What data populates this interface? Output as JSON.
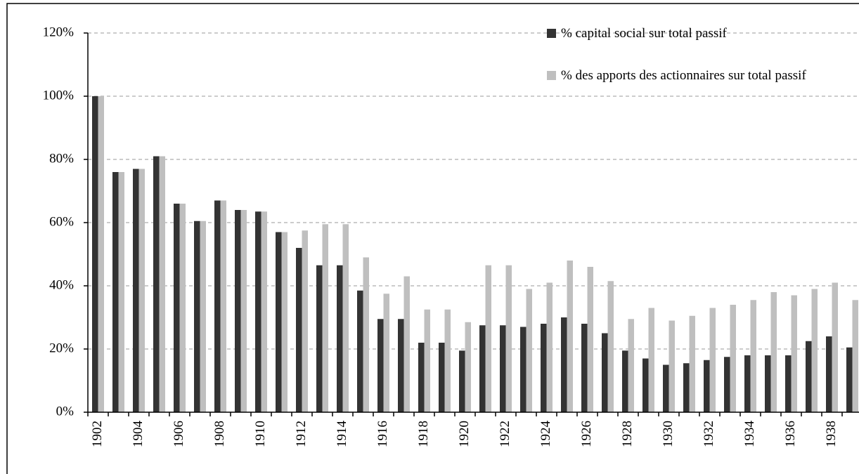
{
  "chart_data": {
    "type": "bar",
    "categories": [
      "1902",
      null,
      "1904",
      null,
      "1906",
      null,
      "1908",
      null,
      "1910",
      null,
      "1912",
      null,
      "1914",
      null,
      "1916",
      null,
      "1918",
      null,
      "1920",
      null,
      "1922",
      null,
      "1924",
      null,
      "1926",
      null,
      "1928",
      null,
      "1930",
      null,
      "1932",
      null,
      "1934",
      null,
      "1936",
      null,
      "1938",
      null
    ],
    "series": [
      {
        "name": "% capital social sur total passif",
        "color": "#333333",
        "values": [
          100,
          76,
          77,
          81,
          66,
          60.5,
          67,
          64,
          63.5,
          57,
          52,
          46.5,
          46.5,
          38.5,
          29.5,
          29.5,
          22,
          22,
          19.5,
          27.5,
          27.5,
          27,
          28,
          30,
          28,
          25,
          19.5,
          17,
          15,
          15.5,
          16.5,
          17.5,
          18,
          18,
          18,
          22.5,
          24,
          20.5
        ]
      },
      {
        "name": "% des apports des actionnaires sur total passif",
        "color": "#bfbfbf",
        "values": [
          100,
          76,
          77,
          81,
          66,
          60.5,
          67,
          64,
          63.5,
          57,
          57.5,
          59.5,
          59.5,
          49,
          37.5,
          43,
          32.5,
          32.5,
          28.5,
          46.5,
          46.5,
          39,
          41,
          48,
          46,
          41.5,
          29.5,
          33,
          29,
          30.5,
          33,
          34,
          35.5,
          38,
          37,
          39,
          41,
          35.5
        ]
      }
    ],
    "ylim": [
      0,
      120
    ],
    "yticks": [
      {
        "value": 0,
        "label": "0%"
      },
      {
        "value": 20,
        "label": "20%"
      },
      {
        "value": 40,
        "label": "40%"
      },
      {
        "value": 60,
        "label": "60%"
      },
      {
        "value": 80,
        "label": "80%"
      },
      {
        "value": 100,
        "label": "100%"
      },
      {
        "value": 120,
        "label": "120%"
      }
    ],
    "grid": true,
    "legend": "top-right"
  }
}
